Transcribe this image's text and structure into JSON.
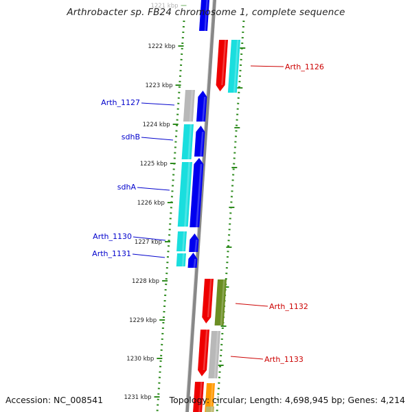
{
  "title": "Arthrobacter sp. FB24 chromosome 1, complete sequence",
  "footer": {
    "accession": "Accession: NC_008541",
    "summary": "Topology: circular; Length: 4,698,945 bp; Genes: 4,214"
  },
  "ticks": [
    "1221 kbp",
    "1222 kbp",
    "1223 kbp",
    "1224 kbp",
    "1225 kbp",
    "1226 kbp",
    "1227 kbp",
    "1228 kbp",
    "1229 kbp",
    "1230 kbp",
    "1231 kbp"
  ],
  "gene_labels_left": [
    "Arth_1127",
    "sdhB",
    "sdhA",
    "Arth_1130",
    "Arth_1131"
  ],
  "gene_labels_right": [
    "Arth_1126",
    "Arth_1132",
    "Arth_1133"
  ],
  "colors": {
    "left_label": "#0000cc",
    "right_label": "#cc0000",
    "tick": "#2e8b1e",
    "tick_text": "#222222",
    "backbone": "#888888",
    "blue": "#0000ee",
    "cyan": "#1adede",
    "red": "#ee0000",
    "grey": "#b8b8b8",
    "olive": "#6b8e23",
    "orange": "#ff9900",
    "khaki": "#bdb76b"
  }
}
